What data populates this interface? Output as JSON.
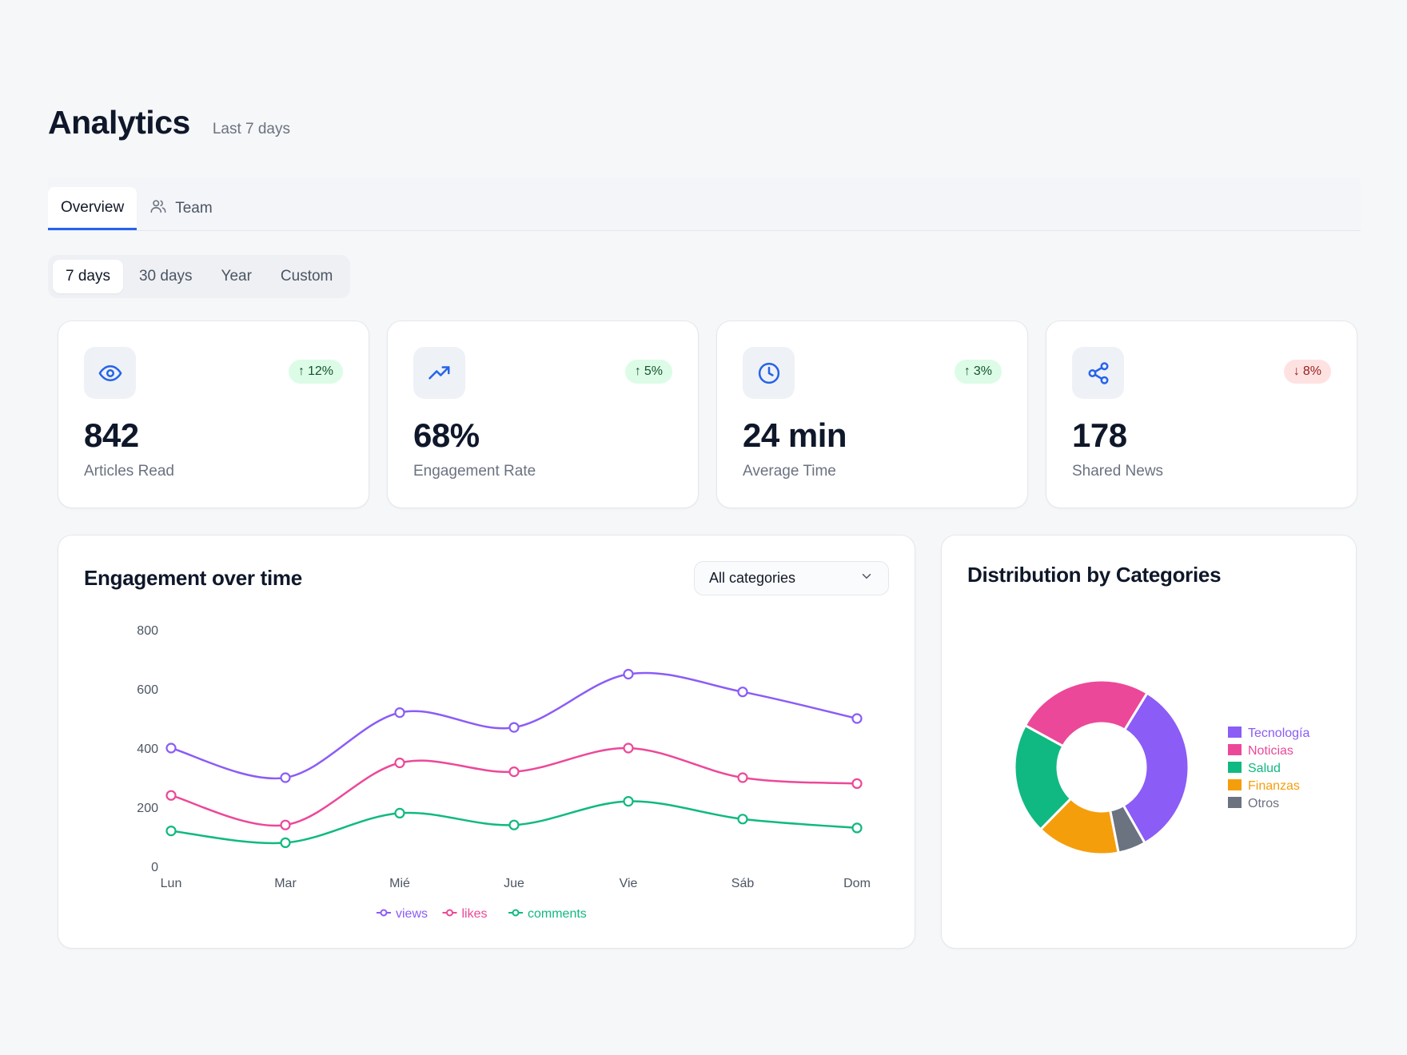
{
  "header": {
    "title": "Analytics",
    "subtitle": "Last 7 days"
  },
  "tabs": [
    {
      "label": "Overview",
      "active": true
    },
    {
      "label": "Team",
      "active": false,
      "icon": "users-icon"
    }
  ],
  "ranges": [
    {
      "label": "7 days",
      "active": true
    },
    {
      "label": "30 days",
      "active": false
    },
    {
      "label": "Year",
      "active": false
    },
    {
      "label": "Custom",
      "active": false
    }
  ],
  "stats": [
    {
      "icon": "eye-icon",
      "value": "842",
      "label": "Articles Read",
      "change": "12%",
      "direction": "up"
    },
    {
      "icon": "trending-up-icon",
      "value": "68%",
      "label": "Engagement Rate",
      "change": "5%",
      "direction": "up"
    },
    {
      "icon": "clock-icon",
      "value": "24 min",
      "label": "Average Time",
      "change": "3%",
      "direction": "up"
    },
    {
      "icon": "share-icon",
      "value": "178",
      "label": "Shared News",
      "change": "8%",
      "direction": "down"
    }
  ],
  "engagement_panel": {
    "title": "Engagement over time",
    "select_value": "All categories"
  },
  "distribution_panel": {
    "title": "Distribution by Categories"
  },
  "colors": {
    "views": "#8b5cf6",
    "likes": "#ec4899",
    "comments": "#10b981",
    "accent": "#2563eb"
  },
  "chart_data": [
    {
      "type": "line",
      "title": "Engagement over time",
      "categories": [
        "Lun",
        "Mar",
        "Mié",
        "Jue",
        "Vie",
        "Sáb",
        "Dom"
      ],
      "series": [
        {
          "name": "views",
          "color": "#8b5cf6",
          "values": [
            400,
            300,
            520,
            470,
            650,
            590,
            500
          ]
        },
        {
          "name": "likes",
          "color": "#ec4899",
          "values": [
            240,
            140,
            350,
            320,
            400,
            300,
            280
          ]
        },
        {
          "name": "comments",
          "color": "#10b981",
          "values": [
            120,
            80,
            180,
            140,
            220,
            160,
            130
          ]
        }
      ],
      "yticks": [
        "0",
        "200",
        "400",
        "600",
        "800"
      ],
      "ylim": [
        0,
        800
      ],
      "legend": "bottom"
    },
    {
      "type": "pie",
      "title": "Distribution by Categories",
      "donut": true,
      "slices": [
        {
          "label": "Tecnología",
          "value": 32,
          "color": "#8b5cf6"
        },
        {
          "label": "Noticias",
          "value": 25,
          "color": "#ec4899"
        },
        {
          "label": "Salud",
          "value": 20,
          "color": "#10b981"
        },
        {
          "label": "Finanzas",
          "value": 15,
          "color": "#f59e0b"
        },
        {
          "label": "Otros",
          "value": 5,
          "color": "#6b7280"
        }
      ],
      "legend": "right"
    }
  ]
}
